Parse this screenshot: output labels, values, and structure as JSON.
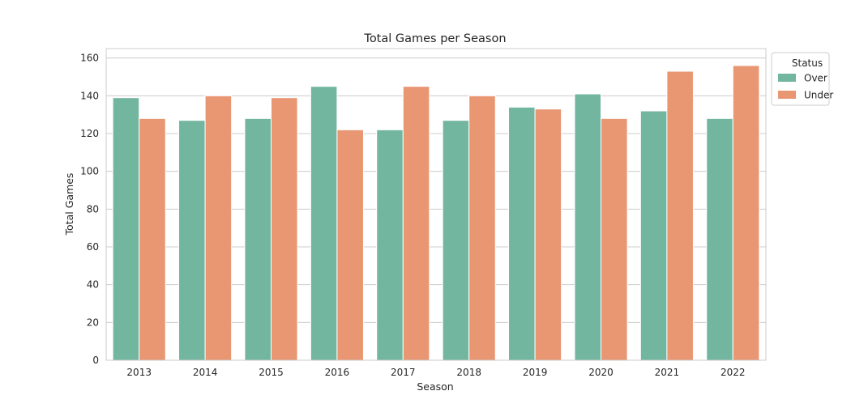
{
  "chart_data": {
    "type": "bar",
    "title": "Total Games per Season",
    "xlabel": "Season",
    "ylabel": "Total Games",
    "categories": [
      "2013",
      "2014",
      "2015",
      "2016",
      "2017",
      "2018",
      "2019",
      "2020",
      "2021",
      "2022"
    ],
    "series": [
      {
        "name": "Over",
        "color": "#73b6a0",
        "values": [
          139,
          127,
          128,
          145,
          122,
          127,
          134,
          141,
          132,
          128
        ]
      },
      {
        "name": "Under",
        "color": "#e99672",
        "values": [
          128,
          140,
          139,
          122,
          145,
          140,
          133,
          128,
          153,
          156
        ]
      }
    ],
    "ylim": [
      0,
      165
    ],
    "yticks": [
      0,
      20,
      40,
      60,
      80,
      100,
      120,
      140,
      160
    ],
    "grid": "y",
    "legend": {
      "title": "Status",
      "placement": "outside-top-right"
    }
  }
}
